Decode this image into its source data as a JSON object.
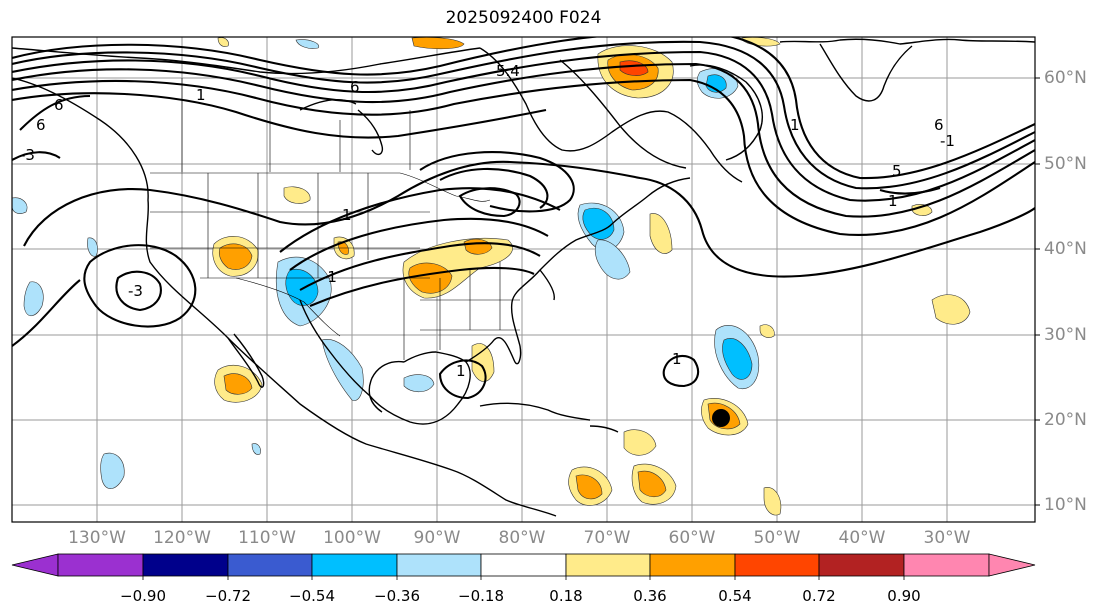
{
  "title": "2025092400 F024",
  "map": {
    "lat_labels": [
      "60°N",
      "50°N",
      "40°N",
      "30°N",
      "20°N",
      "10°N"
    ],
    "lon_labels": [
      "130°W",
      "120°W",
      "110°W",
      "100°W",
      "90°W",
      "80°W",
      "70°W",
      "60°W",
      "50°W",
      "40°W",
      "30°W"
    ],
    "contour_labels": [
      "6",
      "5.4",
      "1",
      "-3",
      "1",
      "6",
      "1",
      "-1",
      "-3",
      "1",
      "1",
      "-1",
      "6",
      "1",
      "5",
      "6"
    ],
    "marker": "storm-center-dot"
  },
  "colorbar": {
    "colors": [
      "#9b30d0",
      "#00008b",
      "#3a5bd0",
      "#00bfff",
      "#aee2fb",
      "#ffffff",
      "#ffeb8a",
      "#ffa000",
      "#ff4500",
      "#b22222",
      "#ff86b0"
    ],
    "ticks": [
      "−0.90",
      "−0.72",
      "−0.54",
      "−0.36",
      "−0.18",
      "0.18",
      "0.36",
      "0.54",
      "0.72",
      "0.90"
    ]
  },
  "chart_data": {
    "type": "heatmap",
    "title": "2025092400 F024",
    "x_ticks": [
      "130°W",
      "120°W",
      "110°W",
      "100°W",
      "90°W",
      "80°W",
      "70°W",
      "60°W",
      "50°W",
      "40°W",
      "30°W"
    ],
    "y_ticks": [
      "60°N",
      "50°N",
      "40°N",
      "30°N",
      "20°N",
      "10°N"
    ],
    "levels": [
      -0.9,
      -0.72,
      -0.54,
      -0.36,
      -0.18,
      0.18,
      0.36,
      0.54,
      0.72,
      0.9
    ],
    "extend": "both"
  }
}
